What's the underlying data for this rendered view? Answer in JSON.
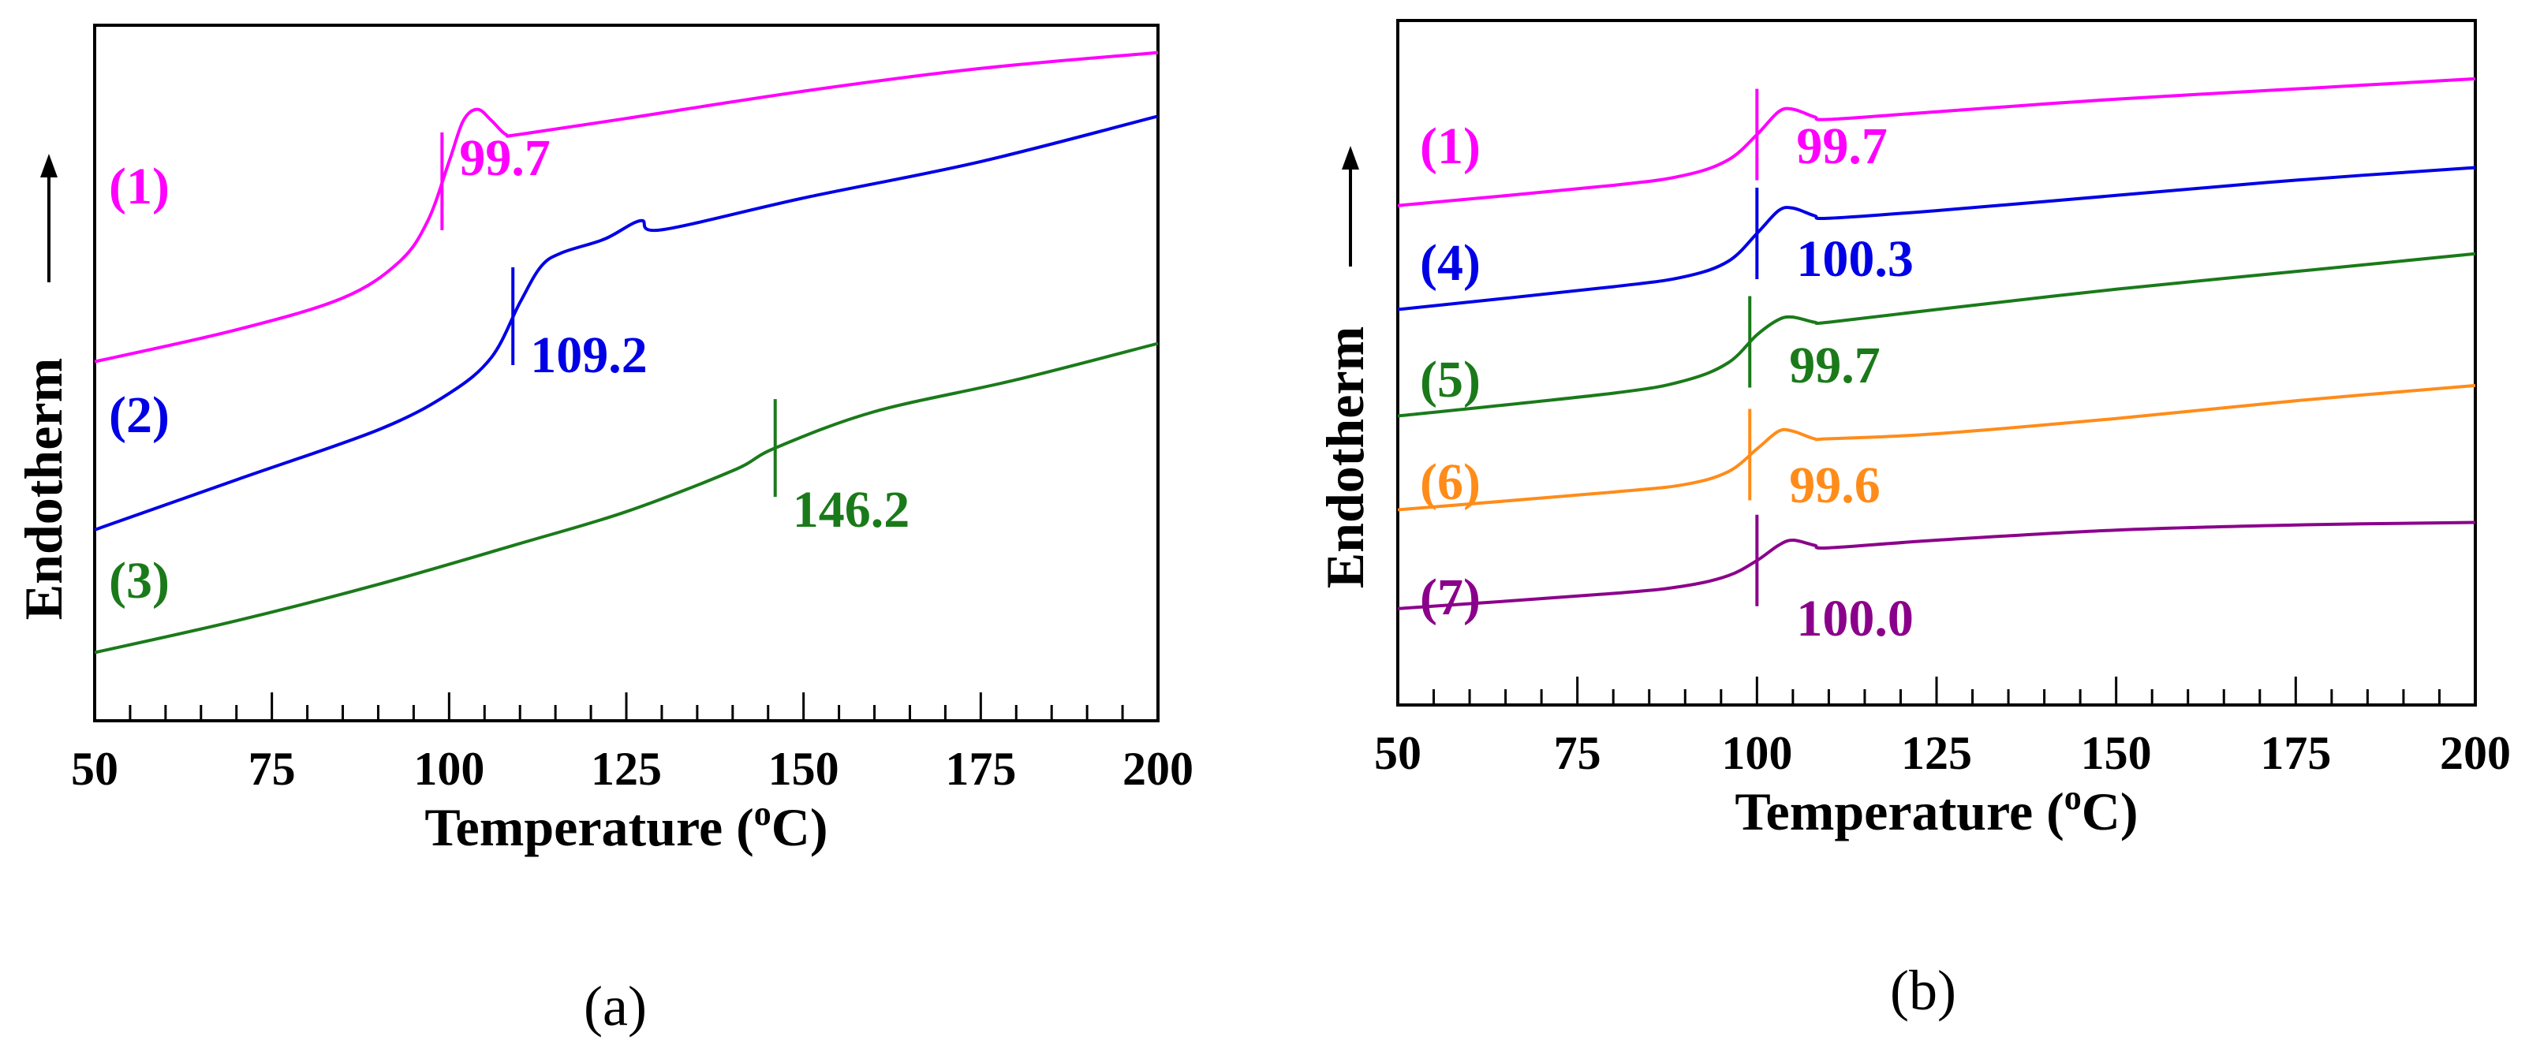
{
  "chart_data": [
    {
      "type": "line",
      "panel_label": "(a)",
      "xlabel_main": "Temperature (",
      "xlabel_sup": "o",
      "xlabel_end": "C)",
      "ylabel": "Endotherm",
      "xlim": [
        50,
        200
      ],
      "xticks": [
        "50",
        "75",
        "100",
        "125",
        "150",
        "175",
        "200"
      ],
      "grid": false,
      "series": [
        {
          "name": "(1)",
          "color": "#ff00ff",
          "tg_label": "99.7",
          "tg_x": 99,
          "points": [
            [
              50,
              -6.6
            ],
            [
              70,
              -5.9
            ],
            [
              85,
              -5.2
            ],
            [
              93,
              -4.4
            ],
            [
              97,
              -3.5
            ],
            [
              100,
              -2.2
            ],
            [
              102,
              -1.3
            ],
            [
              104,
              -1.05
            ],
            [
              106,
              -1.3
            ],
            [
              108,
              -1.6
            ],
            [
              110,
              -1.6
            ],
            [
              125,
              -1.25
            ],
            [
              150,
              -0.65
            ],
            [
              175,
              -0.15
            ],
            [
              200,
              0.2
            ]
          ]
        },
        {
          "name": "(2)",
          "color": "#0000e6",
          "tg_label": "109.2",
          "tg_x": 109,
          "points": [
            [
              50,
              -10.3
            ],
            [
              70,
              -9.2
            ],
            [
              90,
              -8.1
            ],
            [
              100,
              -7.3
            ],
            [
              106,
              -6.5
            ],
            [
              110,
              -5.3
            ],
            [
              113,
              -4.5
            ],
            [
              116,
              -4.2
            ],
            [
              122,
              -3.9
            ],
            [
              127,
              -3.5
            ],
            [
              130,
              -3.7
            ],
            [
              150,
              -3.0
            ],
            [
              175,
              -2.2
            ],
            [
              200,
              -1.2
            ]
          ]
        },
        {
          "name": "(3)",
          "color": "#1a7a1a",
          "tg_label": "146.2",
          "tg_x": 146,
          "points": [
            [
              50,
              -13.0
            ],
            [
              70,
              -12.3
            ],
            [
              90,
              -11.5
            ],
            [
              110,
              -10.6
            ],
            [
              125,
              -9.9
            ],
            [
              140,
              -9.0
            ],
            [
              146,
              -8.5
            ],
            [
              160,
              -7.7
            ],
            [
              180,
              -7.0
            ],
            [
              200,
              -6.2
            ]
          ]
        }
      ],
      "curve_labels": [
        "(1)",
        "(2)",
        "(3)"
      ]
    },
    {
      "type": "line",
      "panel_label": "(b)",
      "xlabel_main": "Temperature (",
      "xlabel_sup": "o",
      "xlabel_end": "C)",
      "ylabel": "Endotherm",
      "xlim": [
        50,
        200
      ],
      "xticks": [
        "50",
        "75",
        "100",
        "125",
        "150",
        "175",
        "200"
      ],
      "grid": false,
      "series": [
        {
          "name": "(1)",
          "color": "#ff00ff",
          "tg_label": "99.7",
          "tg_x": 100,
          "points": [
            [
              50,
              -3.45
            ],
            [
              80,
              -3.05
            ],
            [
              90,
              -2.85
            ],
            [
              96,
              -2.55
            ],
            [
              100,
              -2.05
            ],
            [
              103,
              -1.6
            ],
            [
              105,
              -1.55
            ],
            [
              108,
              -1.7
            ],
            [
              110,
              -1.75
            ],
            [
              125,
              -1.6
            ],
            [
              150,
              -1.35
            ],
            [
              175,
              -1.15
            ],
            [
              200,
              -0.95
            ]
          ]
        },
        {
          "name": "(4)",
          "color": "#0000e6",
          "tg_label": "100.3",
          "tg_x": 100,
          "points": [
            [
              50,
              -5.5
            ],
            [
              80,
              -5.05
            ],
            [
              90,
              -4.85
            ],
            [
              96,
              -4.55
            ],
            [
              100,
              -4.0
            ],
            [
              103,
              -3.55
            ],
            [
              105,
              -3.5
            ],
            [
              108,
              -3.65
            ],
            [
              110,
              -3.7
            ],
            [
              125,
              -3.55
            ],
            [
              150,
              -3.25
            ],
            [
              175,
              -2.95
            ],
            [
              200,
              -2.7
            ]
          ]
        },
        {
          "name": "(5)",
          "color": "#1a7a1a",
          "tg_label": "99.7",
          "tg_x": 99,
          "points": [
            [
              50,
              -7.6
            ],
            [
              80,
              -7.15
            ],
            [
              90,
              -6.9
            ],
            [
              96,
              -6.55
            ],
            [
              100,
              -6.0
            ],
            [
              103,
              -5.7
            ],
            [
              105,
              -5.65
            ],
            [
              108,
              -5.75
            ],
            [
              110,
              -5.75
            ],
            [
              125,
              -5.5
            ],
            [
              150,
              -5.1
            ],
            [
              175,
              -4.75
            ],
            [
              200,
              -4.4
            ]
          ]
        },
        {
          "name": "(6)",
          "color": "#ff8c1a",
          "tg_label": "99.6",
          "tg_x": 99,
          "points": [
            [
              50,
              -9.45
            ],
            [
              80,
              -9.1
            ],
            [
              90,
              -8.95
            ],
            [
              96,
              -8.7
            ],
            [
              100,
              -8.25
            ],
            [
              103,
              -7.9
            ],
            [
              105,
              -7.9
            ],
            [
              108,
              -8.05
            ],
            [
              110,
              -8.05
            ],
            [
              125,
              -7.95
            ],
            [
              150,
              -7.65
            ],
            [
              175,
              -7.3
            ],
            [
              200,
              -7.0
            ]
          ]
        },
        {
          "name": "(7)",
          "color": "#8b008b",
          "tg_label": "100.0",
          "tg_x": 100,
          "points": [
            [
              50,
              -11.4
            ],
            [
              80,
              -11.1
            ],
            [
              90,
              -10.95
            ],
            [
              96,
              -10.75
            ],
            [
              100,
              -10.45
            ],
            [
              103,
              -10.15
            ],
            [
              105,
              -10.05
            ],
            [
              108,
              -10.15
            ],
            [
              110,
              -10.2
            ],
            [
              125,
              -10.05
            ],
            [
              150,
              -9.85
            ],
            [
              175,
              -9.75
            ],
            [
              200,
              -9.7
            ]
          ]
        }
      ],
      "curve_labels": [
        "(1)",
        "(4)",
        "(5)",
        "(6)",
        "(7)"
      ]
    }
  ]
}
